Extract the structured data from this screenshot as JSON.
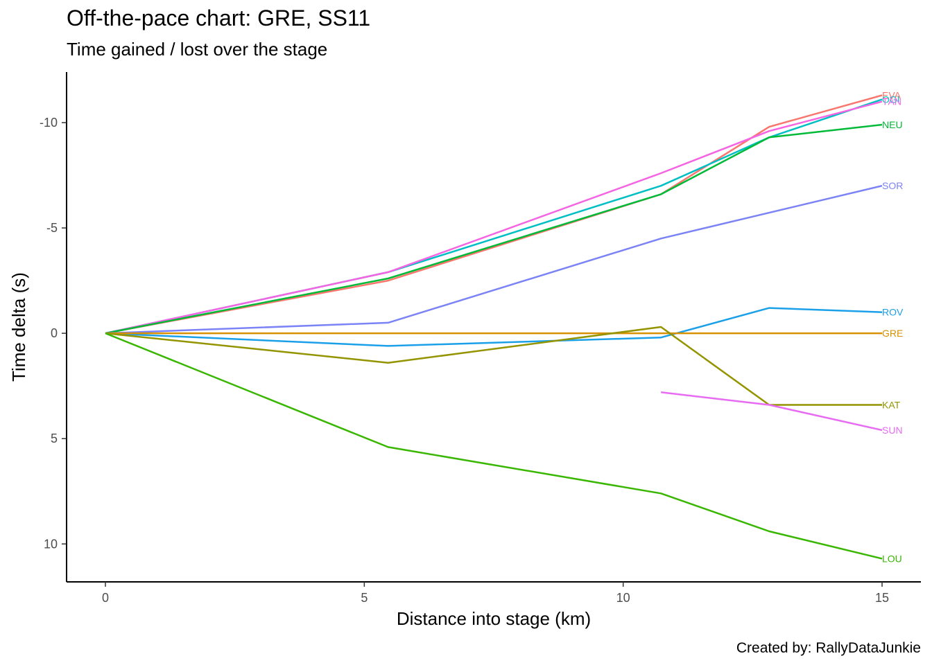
{
  "chart_data": {
    "type": "line",
    "title": "Off-the-pace chart: GRE, SS11",
    "subtitle": "Time gained / lost over the stage",
    "caption": "Created by: RallyDataJunkie",
    "xlabel": "Distance into stage (km)",
    "ylabel": "Time delta (s)",
    "xlim": [
      -0.75,
      15.75
    ],
    "ylim": [
      -12.4,
      11.8
    ],
    "y_reversed": true,
    "x_ticks": [
      0,
      5,
      10,
      15
    ],
    "y_ticks": [
      -10,
      -5,
      0,
      5,
      10
    ],
    "y_tick_labels": [
      "-10",
      "-5",
      "0",
      "5",
      "10"
    ],
    "grid": false,
    "legend": "none",
    "series": [
      {
        "name": "EVA",
        "color": "#F8766D",
        "x": [
          0,
          5.46,
          10.73,
          12.82,
          15
        ],
        "y": [
          0,
          -2.5,
          -6.6,
          -9.8,
          -11.3
        ]
      },
      {
        "name": "OGI",
        "color": "#00BFC4",
        "x": [
          0,
          5.46,
          10.73,
          12.82,
          15
        ],
        "y": [
          0,
          -2.9,
          -7.0,
          -9.3,
          -11.1
        ]
      },
      {
        "name": "TÄN",
        "color": "#F564E3",
        "x": [
          0,
          5.46,
          10.73,
          12.82,
          15
        ],
        "y": [
          0,
          -2.9,
          -7.6,
          -9.6,
          -11.0
        ]
      },
      {
        "name": "NEU",
        "color": "#00BA38",
        "x": [
          0,
          5.46,
          10.73,
          12.82,
          15
        ],
        "y": [
          0,
          -2.6,
          -6.6,
          -9.3,
          -9.9
        ]
      },
      {
        "name": "SOR",
        "color": "#7B83F6",
        "x": [
          0,
          5.46,
          10.73,
          15
        ],
        "y": [
          0,
          -0.5,
          -4.5,
          -7.0
        ]
      },
      {
        "name": "ROV",
        "color": "#1AA0E8",
        "x": [
          0,
          5.46,
          10.73,
          12.82,
          15
        ],
        "y": [
          0,
          0.6,
          0.2,
          -1.2,
          -1.0
        ]
      },
      {
        "name": "GRE",
        "color": "#D89000",
        "x": [
          0,
          5.46,
          10.73,
          12.82,
          15
        ],
        "y": [
          0,
          0,
          0,
          0,
          0
        ]
      },
      {
        "name": "KAT",
        "color": "#939400",
        "x": [
          0,
          5.46,
          10.73,
          12.82,
          15
        ],
        "y": [
          0,
          1.4,
          -0.3,
          3.4,
          3.4
        ]
      },
      {
        "name": "SUN",
        "color": "#E76BF3",
        "x": [
          10.73,
          12.82,
          15
        ],
        "y": [
          2.8,
          3.4,
          4.6
        ]
      },
      {
        "name": "LOU",
        "color": "#39B600",
        "x": [
          0,
          5.46,
          10.73,
          12.82,
          15
        ],
        "y": [
          0,
          5.4,
          7.6,
          9.4,
          10.7
        ]
      }
    ]
  }
}
